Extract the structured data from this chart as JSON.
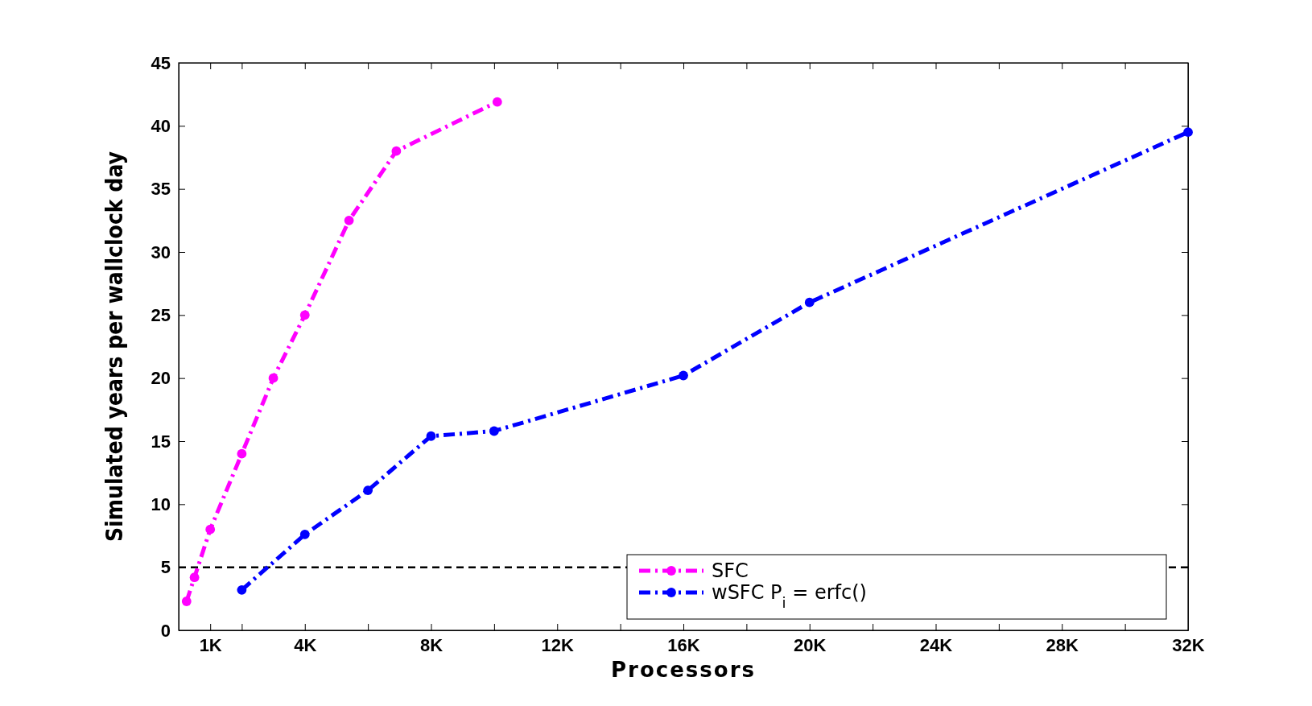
{
  "chart_data": {
    "type": "line",
    "xlabel": "Processors",
    "ylabel": "Simulated years per wallclock day",
    "xlim": [
      0,
      32
    ],
    "xticks": [
      {
        "value": 1,
        "label": "1K"
      },
      {
        "value": 2,
        "label": null
      },
      {
        "value": 4,
        "label": "4K"
      },
      {
        "value": 6,
        "label": null
      },
      {
        "value": 8,
        "label": "8K"
      },
      {
        "value": 10,
        "label": null
      },
      {
        "value": 12,
        "label": "12K"
      },
      {
        "value": 14,
        "label": null
      },
      {
        "value": 16,
        "label": "16K"
      },
      {
        "value": 18,
        "label": null
      },
      {
        "value": 20,
        "label": "20K"
      },
      {
        "value": 22,
        "label": null
      },
      {
        "value": 24,
        "label": "24K"
      },
      {
        "value": 26,
        "label": null
      },
      {
        "value": 28,
        "label": "28K"
      },
      {
        "value": 30,
        "label": null
      },
      {
        "value": 32,
        "label": "32K"
      }
    ],
    "ylim": [
      0,
      45
    ],
    "yticks": [
      0,
      5,
      10,
      15,
      20,
      25,
      30,
      35,
      40,
      45
    ],
    "grid": false,
    "legend": "bottom right",
    "marker": "circle",
    "line_style": "dashed",
    "series": [
      {
        "name": "SFC",
        "color": "#ff00ff",
        "x": [
          0.25,
          0.5,
          1,
          2,
          3,
          4,
          5.4,
          6.9,
          10.1
        ],
        "values": [
          2.3,
          4.2,
          8,
          14,
          20,
          25,
          32.5,
          38,
          41.9
        ]
      },
      {
        "name": "wSFC P$_{i}$ = erfc()",
        "color": "#0000ff",
        "x": [
          2,
          4,
          6,
          8,
          10,
          16,
          20,
          32
        ],
        "values": [
          3.2,
          7.6,
          11.1,
          15.4,
          15.8,
          20.2,
          26,
          39.5
        ]
      }
    ],
    "ref_lines": [
      {
        "axis": "y",
        "value": 5,
        "color": "#000000",
        "line_style": "dashed"
      }
    ]
  }
}
